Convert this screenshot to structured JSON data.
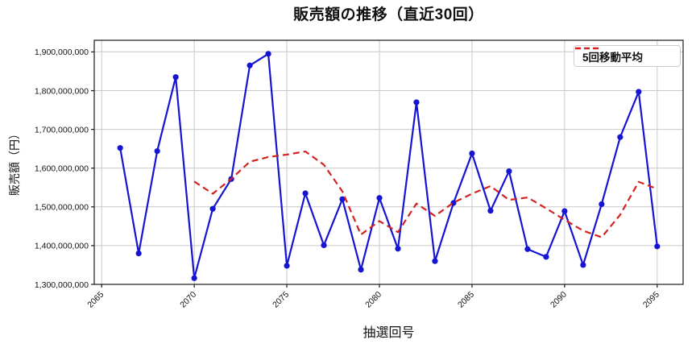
{
  "title": "販売額の推移（直近30回）",
  "x_axis": {
    "label": "抽選回号",
    "tick_labels": [
      "2065",
      "2070",
      "2075",
      "2080",
      "2085",
      "2090",
      "2095"
    ]
  },
  "y_axis": {
    "label": "販売額（円）",
    "tick_labels": [
      "1,300,000,000",
      "1,400,000,000",
      "1,500,000,000",
      "1,600,000,000",
      "1,700,000,000",
      "1,800,000,000",
      "1,900,000,000"
    ]
  },
  "legend": {
    "items": [
      {
        "label": "5回移動平均",
        "color": "#d32222",
        "line_style": "dashed"
      }
    ]
  },
  "colors": {
    "sales_line": "#1414d2",
    "moving_avg_line": "#d32222",
    "grid": "#c9c9c9",
    "axis": "#1a1a1a",
    "text": "#111111",
    "background": "#ffffff"
  },
  "chart_data": {
    "type": "line",
    "title": "販売額の推移（直近30回）",
    "xlabel": "抽選回号",
    "ylabel": "販売額（円）",
    "x": [
      2066,
      2067,
      2068,
      2069,
      2070,
      2071,
      2072,
      2073,
      2074,
      2075,
      2076,
      2077,
      2078,
      2079,
      2080,
      2081,
      2082,
      2083,
      2084,
      2085,
      2086,
      2087,
      2088,
      2089,
      2090,
      2091,
      2092,
      2093,
      2094,
      2095
    ],
    "series": [
      {
        "name": "販売額",
        "style": "solid",
        "marker": "circle",
        "color": "#1414d2",
        "values": [
          1652000000,
          1380000000,
          1644000000,
          1835000000,
          1316000000,
          1495000000,
          1572000000,
          1865000000,
          1895000000,
          1348000000,
          1535000000,
          1401000000,
          1520000000,
          1338000000,
          1523000000,
          1392000000,
          1770000000,
          1360000000,
          1510000000,
          1638000000,
          1490000000,
          1592000000,
          1391000000,
          1371000000,
          1489000000,
          1350000000,
          1507000000,
          1680000000,
          1797000000,
          1398000000
        ]
      },
      {
        "name": "5回移動平均",
        "style": "dashed",
        "marker": "none",
        "color": "#d32222",
        "values": [
          null,
          null,
          null,
          null,
          1565400000,
          1534000000,
          1572400000,
          1616600000,
          1628600000,
          1635000000,
          1643000000,
          1608800000,
          1539800000,
          1428400000,
          1463400000,
          1434800000,
          1508600000,
          1476600000,
          1511000000,
          1534000000,
          1553600000,
          1518000000,
          1524200000,
          1496400000,
          1466600000,
          1438600000,
          1421600000,
          1479400000,
          1564600000,
          1546400000
        ]
      }
    ],
    "x_ticks": [
      2065,
      2070,
      2075,
      2080,
      2085,
      2090,
      2095
    ],
    "y_ticks": [
      1300000000,
      1400000000,
      1500000000,
      1600000000,
      1700000000,
      1800000000,
      1900000000
    ],
    "xlim": [
      2064.6,
      2096.4
    ],
    "ylim": [
      1300000000,
      1930000000
    ],
    "grid": true,
    "legend_position": "upper right"
  }
}
